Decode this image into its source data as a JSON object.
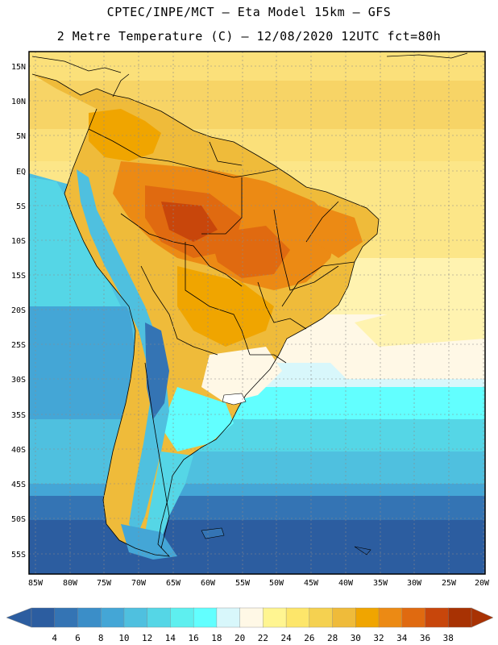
{
  "header": {
    "line1": "CPTEC/INPE/MCT –  Eta Model 15km – GFS",
    "line2": "2 Metre Temperature (C) – 12/08/2020 12UTC fct=80h"
  },
  "map": {
    "lat_labels": [
      "15N",
      "10N",
      "5N",
      "EQ",
      "5S",
      "10S",
      "15S",
      "20S",
      "25S",
      "30S",
      "35S",
      "40S",
      "45S",
      "50S",
      "55S"
    ],
    "lon_labels": [
      "85W",
      "80W",
      "75W",
      "70W",
      "65W",
      "60W",
      "55W",
      "50W",
      "45W",
      "40W",
      "35W",
      "30W",
      "25W",
      "20W"
    ],
    "region": "South America",
    "gridlines": true
  },
  "colorbar": {
    "labels": [
      "4",
      "6",
      "8",
      "10",
      "12",
      "14",
      "16",
      "18",
      "20",
      "22",
      "24",
      "26",
      "28",
      "30",
      "32",
      "34",
      "36",
      "38"
    ],
    "colors": [
      "#2c5da0",
      "#3474b4",
      "#3b8ec8",
      "#44a6d6",
      "#4fc0df",
      "#55d6e6",
      "#5eefef",
      "#62ffff",
      "#d8f7fb",
      "#fff8e6",
      "#fff591",
      "#fde66a",
      "#f5d150",
      "#efbb3a",
      "#f0a500",
      "#ec8a14",
      "#e06a10",
      "#c8460b",
      "#a83203"
    ]
  }
}
